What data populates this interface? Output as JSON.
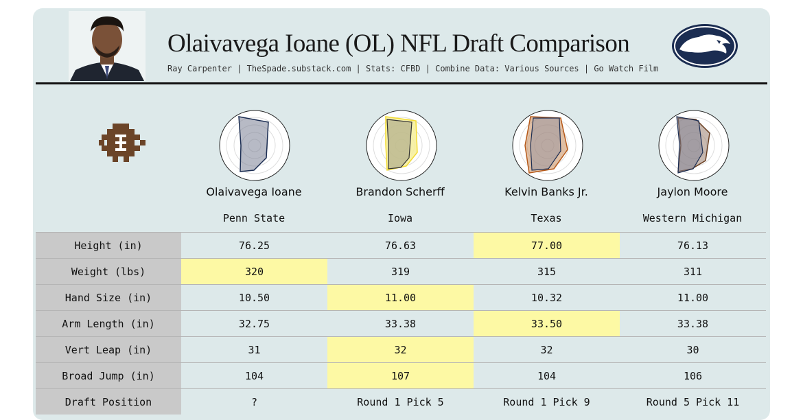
{
  "header": {
    "title": "Olaivavega Ioane (OL) NFL Draft Comparison",
    "subtitle": "Ray Carpenter | TheSpade.substack.com | Stats: CFBD | Combine Data: Various Sources | Go Watch Film"
  },
  "colors": {
    "card_bg": "#dde9ea",
    "label_bg": "#c9c9c9",
    "highlight": "#fdf9a4",
    "logo_navy": "#1b2d52"
  },
  "players": [
    {
      "name": "Olaivavega Ioane",
      "school": "Penn State",
      "radar_color": "#1b2d52",
      "radar_fill": "#7b8296",
      "radar_fill2": "#7b8296"
    },
    {
      "name": "Brandon Scherff",
      "school": "Iowa",
      "radar_color": "#f3dc33",
      "radar_fill": "#f6ee99",
      "radar_fill2": "#8a8a80"
    },
    {
      "name": "Kelvin Banks Jr.",
      "school": "Texas",
      "radar_color": "#b65a1a",
      "radar_fill": "#c68a5a",
      "radar_fill2": "#8b8ea0"
    },
    {
      "name": "Jaylon Moore",
      "school": "Western Michigan",
      "radar_color": "#6a3f22",
      "radar_fill": "#9b8070",
      "radar_fill2": "#7d8196"
    }
  ],
  "chart_data": {
    "type": "table",
    "columns": [
      "Olaivavega Ioane",
      "Brandon Scherff",
      "Kelvin Banks Jr.",
      "Jaylon Moore"
    ],
    "rows": [
      {
        "label": "Height (in)",
        "values": [
          "76.25",
          "76.63",
          "77.00",
          "76.13"
        ],
        "highlight": [
          2
        ]
      },
      {
        "label": "Weight (lbs)",
        "values": [
          "320",
          "319",
          "315",
          "311"
        ],
        "highlight": [
          0
        ]
      },
      {
        "label": "Hand Size (in)",
        "values": [
          "10.50",
          "11.00",
          "10.32",
          "11.00"
        ],
        "highlight": [
          1
        ]
      },
      {
        "label": "Arm Length (in)",
        "values": [
          "32.75",
          "33.38",
          "33.50",
          "33.38"
        ],
        "highlight": [
          2
        ]
      },
      {
        "label": "Vert Leap (in)",
        "values": [
          "31",
          "32",
          "32",
          "30"
        ],
        "highlight": [
          1
        ]
      },
      {
        "label": "Broad Jump (in)",
        "values": [
          "104",
          "107",
          "104",
          "106"
        ],
        "highlight": [
          1
        ]
      },
      {
        "label": "Draft Position",
        "values": [
          "?",
          "Round 1 Pick 5",
          "Round 1 Pick 9",
          "Round 5 Pick 11"
        ],
        "highlight": []
      }
    ]
  }
}
